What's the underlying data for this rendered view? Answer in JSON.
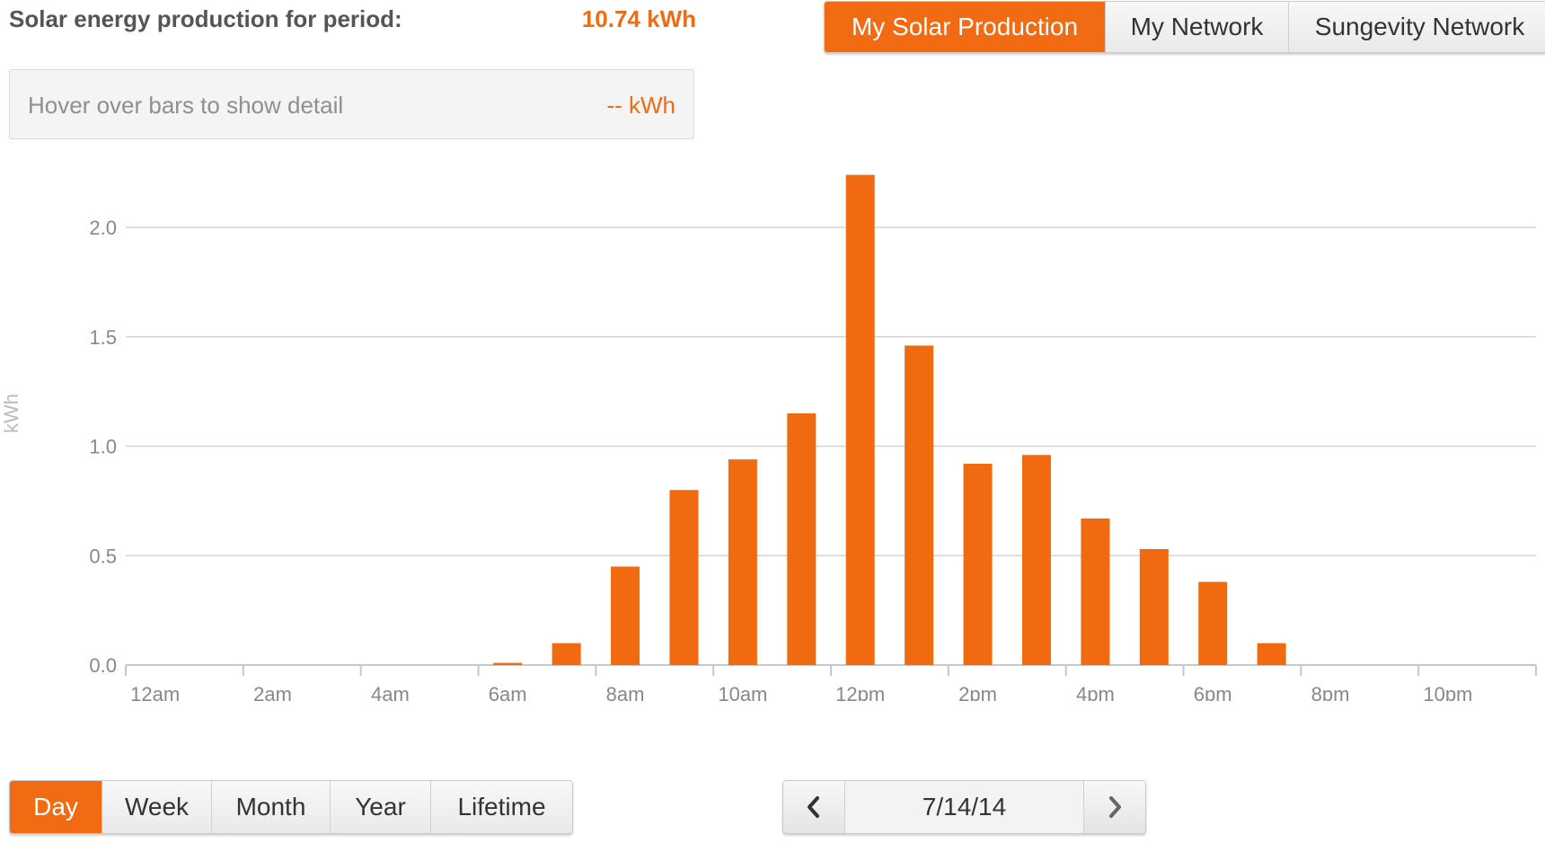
{
  "summary": {
    "label": "Solar energy production for period:",
    "value": "10.74 kWh"
  },
  "detail": {
    "label": "Hover over bars to show detail",
    "value": "-- kWh"
  },
  "nav_tabs": [
    {
      "label": "My Solar Production",
      "active": true
    },
    {
      "label": "My Network",
      "active": false
    },
    {
      "label": "Sungevity Network",
      "active": false
    }
  ],
  "period_tabs": [
    {
      "label": "Day",
      "active": true
    },
    {
      "label": "Week",
      "active": false
    },
    {
      "label": "Month",
      "active": false
    },
    {
      "label": "Year",
      "active": false
    },
    {
      "label": "Lifetime",
      "active": false
    }
  ],
  "date_nav": {
    "date": "7/14/14",
    "prev_icon": "chevron-left-icon",
    "next_icon": "chevron-right-icon"
  },
  "colors": {
    "accent": "#f26a12",
    "bar": "#f26a0f",
    "grid": "#d4d4d4",
    "axis_text": "#888888"
  },
  "chart_data": {
    "type": "bar",
    "title": "",
    "ylabel": "kWh",
    "xlabel": "",
    "ylim": [
      0,
      2.3
    ],
    "yticks": [
      0.0,
      0.5,
      1.0,
      1.5,
      2.0
    ],
    "ytick_labels": [
      "0.0",
      "0.5",
      "1.0",
      "1.5",
      "2.0"
    ],
    "tick_labels": [
      "12am",
      "2am",
      "4am",
      "6am",
      "8am",
      "10am",
      "12pm",
      "2pm",
      "4pm",
      "6pm",
      "8pm",
      "10pm"
    ],
    "grid": true,
    "categories": [
      "12am",
      "1am",
      "2am",
      "3am",
      "4am",
      "5am",
      "6am",
      "7am",
      "8am",
      "9am",
      "10am",
      "11am",
      "12pm",
      "1pm",
      "2pm",
      "3pm",
      "4pm",
      "5pm",
      "6pm",
      "7pm",
      "8pm",
      "9pm",
      "10pm",
      "11pm"
    ],
    "values": [
      0,
      0,
      0,
      0,
      0,
      0,
      0.01,
      0.1,
      0.45,
      0.8,
      0.94,
      1.15,
      2.24,
      1.46,
      0.92,
      0.96,
      0.67,
      0.53,
      0.38,
      0.1,
      0,
      0,
      0,
      0
    ]
  }
}
